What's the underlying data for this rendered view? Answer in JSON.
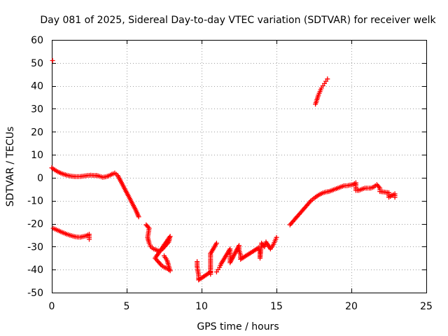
{
  "chart_data": {
    "type": "scatter",
    "title": "Day 081 of 2025, Sidereal Day-to-day VTEC variation (SDTVAR) for receiver welk",
    "xlabel": "GPS time / hours",
    "ylabel": "SDTVAR / TECUs",
    "xlim": [
      0,
      25
    ],
    "ylim": [
      -50,
      60
    ],
    "xticks": [
      0,
      5,
      10,
      15,
      20,
      25
    ],
    "yticks": [
      -50,
      -40,
      -30,
      -20,
      -10,
      0,
      10,
      20,
      30,
      40,
      50,
      60
    ],
    "grid": true,
    "marker": "+",
    "color": "#ff0000",
    "series": [
      {
        "name": "track-upper-early",
        "points": [
          [
            0.0,
            4.3
          ],
          [
            0.2,
            3.4
          ],
          [
            0.4,
            2.6
          ],
          [
            0.6,
            2.0
          ],
          [
            0.8,
            1.5
          ],
          [
            1.0,
            1.1
          ],
          [
            1.2,
            0.8
          ],
          [
            1.4,
            0.6
          ],
          [
            1.6,
            0.5
          ],
          [
            1.8,
            0.5
          ],
          [
            2.0,
            0.6
          ],
          [
            2.2,
            0.8
          ],
          [
            2.4,
            1.0
          ],
          [
            2.6,
            1.1
          ],
          [
            2.8,
            1.0
          ],
          [
            3.0,
            0.9
          ]
        ]
      },
      {
        "name": "track-mid-morning",
        "points": [
          [
            3.0,
            1.0
          ],
          [
            3.2,
            0.6
          ],
          [
            3.4,
            0.2
          ],
          [
            3.6,
            0.4
          ],
          [
            3.8,
            0.8
          ],
          [
            4.0,
            1.5
          ],
          [
            4.2,
            2.0
          ],
          [
            4.4,
            1.0
          ],
          [
            4.6,
            -1.5
          ],
          [
            4.8,
            -4.0
          ],
          [
            5.0,
            -6.5
          ],
          [
            5.2,
            -9.0
          ],
          [
            5.4,
            -11.5
          ],
          [
            5.6,
            -14.0
          ],
          [
            5.8,
            -17.0
          ]
        ]
      },
      {
        "name": "track-lower-early",
        "points": [
          [
            0.1,
            -22.0
          ],
          [
            0.3,
            -22.6
          ],
          [
            0.5,
            -23.2
          ],
          [
            0.7,
            -23.8
          ],
          [
            0.9,
            -24.3
          ],
          [
            1.1,
            -24.8
          ],
          [
            1.3,
            -25.2
          ],
          [
            1.5,
            -25.6
          ],
          [
            1.7,
            -25.8
          ],
          [
            1.9,
            -25.9
          ],
          [
            2.1,
            -25.6
          ],
          [
            2.3,
            -25.3
          ],
          [
            2.5,
            -24.6
          ],
          [
            2.5,
            -26.8
          ]
        ]
      },
      {
        "name": "track-descent",
        "points": [
          [
            6.3,
            -20.5
          ],
          [
            6.5,
            -22.0
          ],
          [
            6.4,
            -26.0
          ],
          [
            6.5,
            -28.5
          ],
          [
            6.6,
            -30.0
          ],
          [
            6.8,
            -31.0
          ],
          [
            7.0,
            -31.5
          ],
          [
            7.2,
            -32.0
          ],
          [
            7.4,
            -31.0
          ],
          [
            7.6,
            -29.5
          ],
          [
            7.8,
            -28.0
          ],
          [
            7.9,
            -25.5
          ],
          [
            6.9,
            -35.0
          ],
          [
            7.1,
            -36.5
          ],
          [
            7.3,
            -38.0
          ],
          [
            7.5,
            -39.0
          ],
          [
            7.7,
            -39.5
          ],
          [
            7.9,
            -40.5
          ],
          [
            7.7,
            -36.0
          ],
          [
            7.5,
            -34.0
          ]
        ]
      },
      {
        "name": "track-minimum",
        "points": [
          [
            9.7,
            -36.5
          ],
          [
            9.7,
            -38.5
          ],
          [
            9.75,
            -40.5
          ],
          [
            9.8,
            -42.5
          ],
          [
            9.8,
            -44.5
          ],
          [
            10.6,
            -41.0
          ],
          [
            10.6,
            -42.0
          ],
          [
            10.6,
            -33.0
          ],
          [
            11.0,
            -28.5
          ],
          [
            11.0,
            -41.0
          ],
          [
            11.1,
            -40.0
          ],
          [
            11.2,
            -39.0
          ],
          [
            11.3,
            -37.5
          ],
          [
            11.9,
            -31.0
          ],
          [
            11.9,
            -33.0
          ],
          [
            11.9,
            -35.0
          ],
          [
            11.9,
            -37.0
          ],
          [
            12.5,
            -29.5
          ],
          [
            12.5,
            -31.5
          ],
          [
            12.6,
            -33.5
          ],
          [
            12.6,
            -35.5
          ],
          [
            13.8,
            -30.5
          ],
          [
            13.9,
            -32.5
          ],
          [
            13.9,
            -35.0
          ],
          [
            14.0,
            -28.5
          ],
          [
            14.2,
            -30.0
          ],
          [
            14.3,
            -28.0
          ],
          [
            14.6,
            -31.0
          ],
          [
            14.8,
            -29.0
          ],
          [
            14.9,
            -27.5
          ],
          [
            15.0,
            -26.0
          ]
        ]
      },
      {
        "name": "track-recovery",
        "points": [
          [
            15.9,
            -20.5
          ],
          [
            16.1,
            -19.0
          ],
          [
            16.3,
            -17.5
          ],
          [
            16.5,
            -16.0
          ],
          [
            16.7,
            -14.5
          ],
          [
            16.9,
            -13.0
          ],
          [
            17.1,
            -11.5
          ],
          [
            17.3,
            -10.0
          ],
          [
            17.5,
            -9.0
          ],
          [
            17.7,
            -8.0
          ],
          [
            17.9,
            -7.2
          ],
          [
            18.1,
            -6.6
          ],
          [
            18.3,
            -6.2
          ],
          [
            18.5,
            -6.0
          ],
          [
            18.7,
            -5.5
          ],
          [
            18.9,
            -5.0
          ],
          [
            19.1,
            -4.5
          ],
          [
            19.3,
            -4.0
          ],
          [
            19.5,
            -3.5
          ],
          [
            19.7,
            -3.5
          ],
          [
            19.9,
            -3.2
          ],
          [
            20.1,
            -3.0
          ],
          [
            20.3,
            -2.2
          ],
          [
            20.3,
            -5.5
          ],
          [
            20.5,
            -5.5
          ],
          [
            20.7,
            -5.0
          ],
          [
            20.9,
            -4.5
          ],
          [
            21.1,
            -4.5
          ],
          [
            21.3,
            -4.5
          ],
          [
            21.5,
            -4.0
          ],
          [
            21.7,
            -3.0
          ],
          [
            21.9,
            -4.5
          ],
          [
            21.9,
            -6.0
          ],
          [
            22.5,
            -6.5
          ],
          [
            22.5,
            -8.5
          ],
          [
            22.9,
            -7.0
          ],
          [
            22.9,
            -8.5
          ]
        ]
      },
      {
        "name": "track-high-outlier",
        "points": [
          [
            17.6,
            32.0
          ],
          [
            17.7,
            34.0
          ],
          [
            17.8,
            36.0
          ],
          [
            17.9,
            37.5
          ],
          [
            18.0,
            39.0
          ],
          [
            18.1,
            40.0
          ],
          [
            18.2,
            41.0
          ],
          [
            18.3,
            42.0
          ],
          [
            18.4,
            43.0
          ]
        ]
      },
      {
        "name": "isolated-point",
        "points": [
          [
            0.05,
            51.0
          ]
        ]
      }
    ]
  }
}
